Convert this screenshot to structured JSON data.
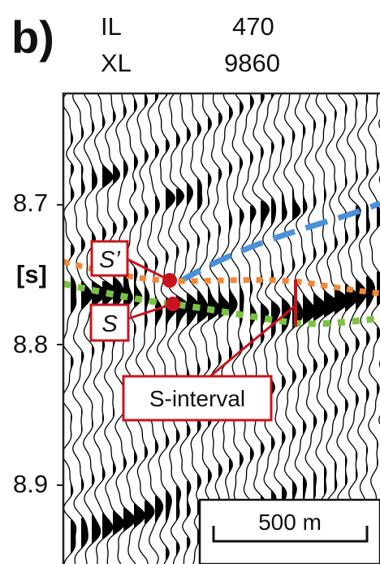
{
  "panel": {
    "letter": "b)"
  },
  "header": {
    "il_key": "IL",
    "il_value": "470",
    "xl_key": "XL",
    "xl_value": "9860"
  },
  "axis": {
    "ticks": [
      "8.7",
      "8.8",
      "8.9"
    ],
    "unit": "[s]"
  },
  "annotations": {
    "s_prime": "S’",
    "s": "S",
    "s_interval": "S-interval"
  },
  "scale_bar": {
    "label": "500 m"
  },
  "colors": {
    "blue_horizon": "#4a90d9",
    "orange_horizon": "#f0883a",
    "green_horizon": "#7cc242",
    "callout_red": "#c8141e",
    "wiggle": "#000000"
  }
}
